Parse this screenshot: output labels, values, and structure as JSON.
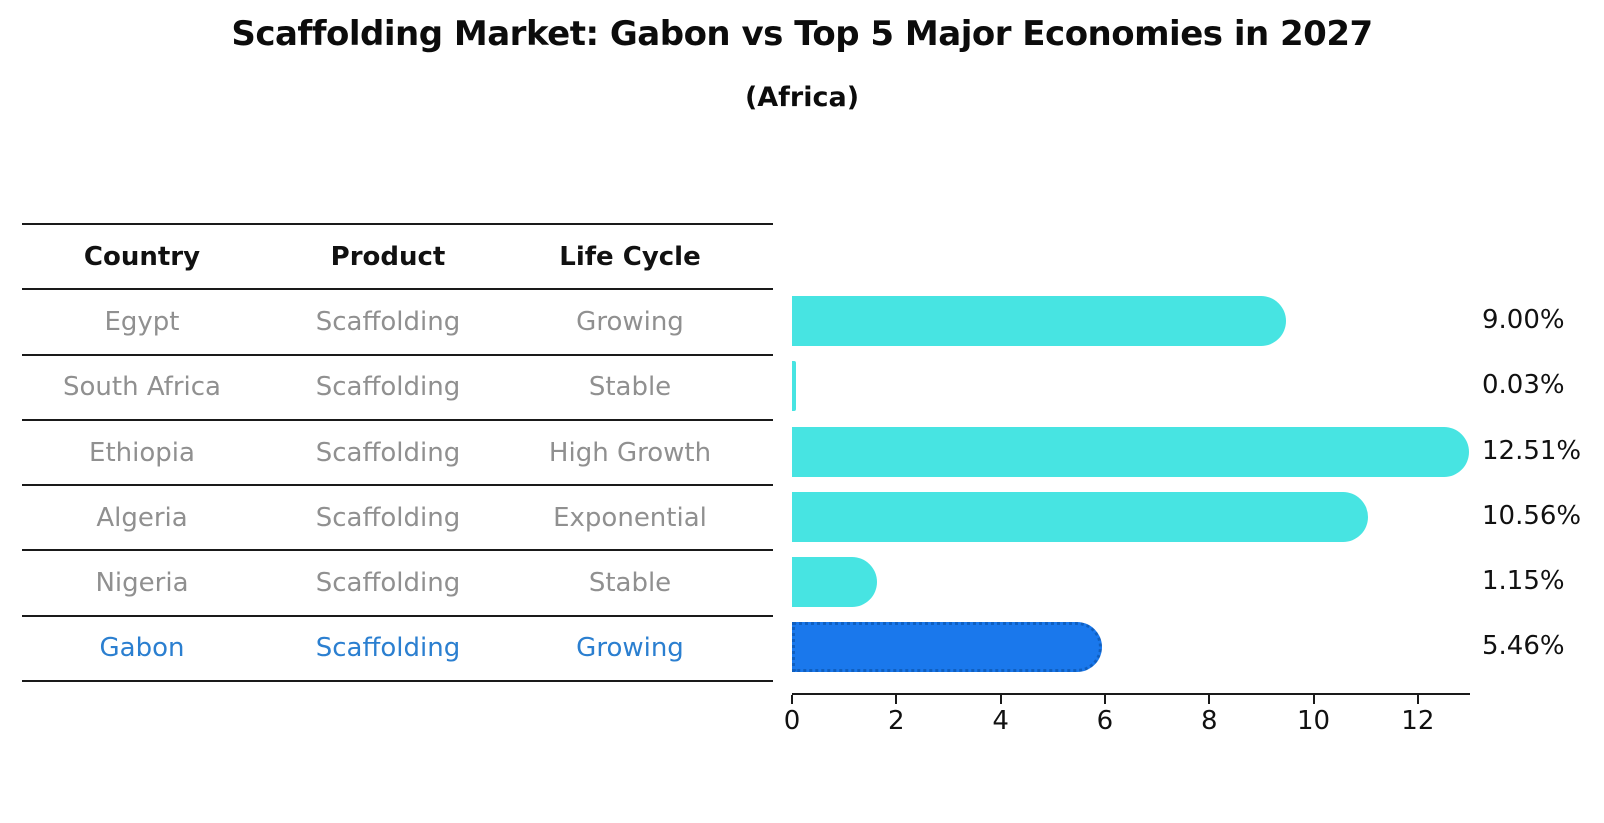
{
  "header": {
    "title": "Scaffolding Market: Gabon vs Top 5 Major Economies in 2027",
    "subtitle": "(Africa)"
  },
  "table": {
    "headers": [
      "Country",
      "Product",
      "Life Cycle"
    ],
    "rows": [
      {
        "country": "Egypt",
        "product": "Scaffolding",
        "life_cycle": "Growing",
        "highlight": false
      },
      {
        "country": "South Africa",
        "product": "Scaffolding",
        "life_cycle": "Stable",
        "highlight": false
      },
      {
        "country": "Ethiopia",
        "product": "Scaffolding",
        "life_cycle": "High Growth",
        "highlight": false
      },
      {
        "country": "Algeria",
        "product": "Scaffolding",
        "life_cycle": "Exponential",
        "highlight": false
      },
      {
        "country": "Nigeria",
        "product": "Scaffolding",
        "life_cycle": "Stable",
        "highlight": false
      },
      {
        "country": "Gabon",
        "product": "Scaffolding",
        "life_cycle": "Growing",
        "highlight": true
      }
    ],
    "text_color": "#909090",
    "highlight_text_color": "#2b7fd0",
    "rule_color": "#1a1a1a"
  },
  "chart_data": {
    "type": "bar",
    "orientation": "horizontal",
    "title": "Scaffolding Market: Gabon vs Top 5 Major Economies in 2027",
    "subtitle": "(Africa)",
    "categories": [
      "Egypt",
      "South Africa",
      "Ethiopia",
      "Algeria",
      "Nigeria",
      "Gabon"
    ],
    "values": [
      9.0,
      0.03,
      12.51,
      10.56,
      1.15,
      5.46
    ],
    "value_labels": [
      "9.00%",
      "0.03%",
      "12.51%",
      "10.56%",
      "1.15%",
      "5.46%"
    ],
    "units": "%",
    "xlabel": "",
    "ylabel": "",
    "xlim": [
      0,
      13
    ],
    "xticks": [
      0,
      2,
      4,
      6,
      8,
      10,
      12
    ],
    "grid": false,
    "legend": false,
    "bar_color": "#47e4e2",
    "highlight_index": 5,
    "highlight_bar_color": "#1a78ec",
    "highlight_bar_border_color": "#0f5fc0",
    "axis_color": "#1a1a1a",
    "label_color": "#111111"
  }
}
